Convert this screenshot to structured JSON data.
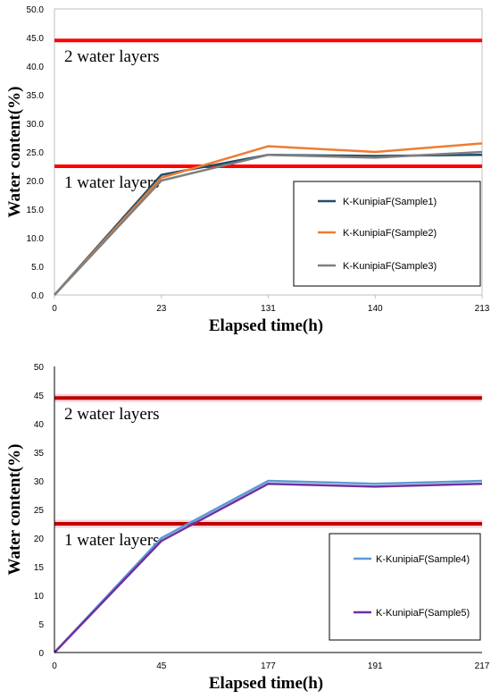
{
  "chart_data": [
    {
      "type": "line",
      "categories": [
        "0",
        "23",
        "131",
        "140",
        "213"
      ],
      "xlabel": "Elapsed time(h)",
      "ylabel": "Water content(%)",
      "ylim": [
        0,
        50
      ],
      "yticks": [
        "0.0",
        "5.0",
        "10.0",
        "15.0",
        "20.0",
        "25.0",
        "30.0",
        "35.0",
        "40.0",
        "45.0",
        "50.0"
      ],
      "grid": false,
      "legend_position": "right",
      "series": [
        {
          "name": "K-KunipiaF(Sample1)",
          "color": "#1f4e6b",
          "values": [
            0,
            21.0,
            24.5,
            24.3,
            24.5
          ]
        },
        {
          "name": "K-KunipiaF(Sample2)",
          "color": "#ed7d31",
          "values": [
            0,
            20.5,
            26.0,
            25.0,
            26.5
          ]
        },
        {
          "name": "K-KunipiaF(Sample3)",
          "color": "#7f7f7f",
          "values": [
            0,
            20.0,
            24.5,
            24.0,
            25.0
          ]
        }
      ],
      "reference_lines": [
        {
          "label": "2 water layers",
          "value": 44.5,
          "color": "#ff0000"
        },
        {
          "label": "1 water layers",
          "value": 22.5,
          "color": "#ff0000"
        }
      ]
    },
    {
      "type": "line",
      "categories": [
        "0",
        "45",
        "177",
        "191",
        "217"
      ],
      "xlabel": "Elapsed time(h)",
      "ylabel": "Water content(%)",
      "ylim": [
        0,
        50
      ],
      "yticks": [
        "0",
        "5",
        "10",
        "15",
        "20",
        "25",
        "30",
        "35",
        "40",
        "45",
        "50"
      ],
      "grid": false,
      "legend_position": "right",
      "series": [
        {
          "name": "K-KunipiaF(Sample4)",
          "color": "#5b9bd5",
          "values": [
            0,
            20.0,
            30.0,
            29.5,
            30.0
          ]
        },
        {
          "name": "K-KunipiaF(Sample5)",
          "color": "#7030a0",
          "values": [
            0,
            19.5,
            29.5,
            29.0,
            29.5
          ]
        }
      ],
      "reference_lines": [
        {
          "label": "2 water layers",
          "value": 44.5,
          "color": "#c00000"
        },
        {
          "label": "1 water layers",
          "value": 22.5,
          "color": "#c00000"
        }
      ]
    }
  ]
}
